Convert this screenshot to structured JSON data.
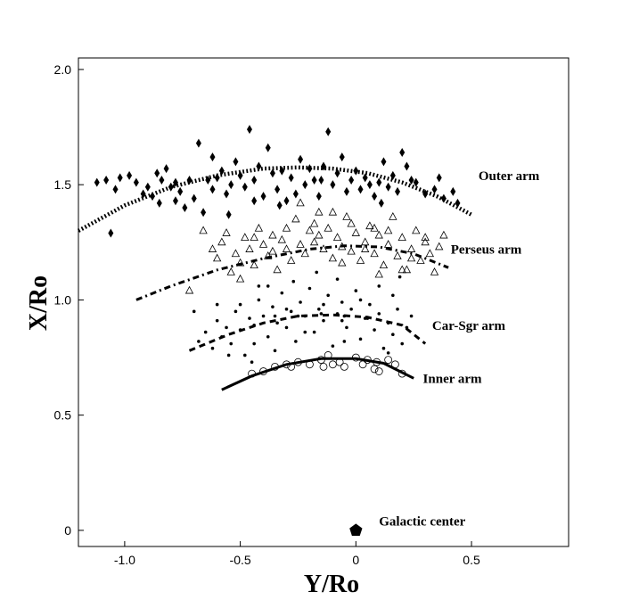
{
  "chart_data": {
    "type": "scatter",
    "xlabel": "Y/Ro",
    "ylabel": "X/Ro",
    "xlim": [
      -1.2,
      0.92
    ],
    "ylim": [
      -0.07,
      2.05
    ],
    "x_ticks": [
      {
        "v": -1.0,
        "label": "-1.0"
      },
      {
        "v": -0.5,
        "label": "-0.5"
      },
      {
        "v": 0,
        "label": "0"
      },
      {
        "v": 0.5,
        "label": "0.5"
      }
    ],
    "y_ticks": [
      {
        "v": 0,
        "label": "0"
      },
      {
        "v": 0.5,
        "label": "0.5"
      },
      {
        "v": 1.0,
        "label": "1.0"
      },
      {
        "v": 1.5,
        "label": "1.5"
      },
      {
        "v": 2.0,
        "label": "2.0"
      }
    ],
    "grid": false,
    "arms": [
      {
        "name": "Outer arm",
        "label_at": [
          0.53,
          1.52
        ],
        "line_style": "dotted",
        "curve": [
          [
            -1.2,
            1.3
          ],
          [
            -1.0,
            1.41
          ],
          [
            -0.8,
            1.49
          ],
          [
            -0.6,
            1.54
          ],
          [
            -0.4,
            1.57
          ],
          [
            -0.25,
            1.575
          ],
          [
            -0.1,
            1.57
          ],
          [
            0.05,
            1.55
          ],
          [
            0.2,
            1.51
          ],
          [
            0.35,
            1.45
          ],
          [
            0.5,
            1.37
          ]
        ],
        "marker": "diamond",
        "points": [
          [
            -1.12,
            1.51
          ],
          [
            -1.08,
            1.52
          ],
          [
            -1.04,
            1.48
          ],
          [
            -1.02,
            1.53
          ],
          [
            -0.98,
            1.54
          ],
          [
            -0.95,
            1.51
          ],
          [
            -0.92,
            1.46
          ],
          [
            -0.9,
            1.49
          ],
          [
            -0.88,
            1.45
          ],
          [
            -0.86,
            1.55
          ],
          [
            -0.84,
            1.52
          ],
          [
            -0.82,
            1.57
          ],
          [
            -0.8,
            1.49
          ],
          [
            -0.78,
            1.43
          ],
          [
            -0.76,
            1.47
          ],
          [
            -0.74,
            1.4
          ],
          [
            -0.72,
            1.52
          ],
          [
            -0.7,
            1.44
          ],
          [
            -0.68,
            1.68
          ],
          [
            -0.66,
            1.38
          ],
          [
            -0.64,
            1.52
          ],
          [
            -0.62,
            1.48
          ],
          [
            -0.6,
            1.53
          ],
          [
            -0.58,
            1.56
          ],
          [
            -0.56,
            1.46
          ],
          [
            -0.54,
            1.5
          ],
          [
            -0.52,
            1.6
          ],
          [
            -0.5,
            1.54
          ],
          [
            -0.48,
            1.49
          ],
          [
            -0.46,
            1.74
          ],
          [
            -0.44,
            1.52
          ],
          [
            -0.42,
            1.58
          ],
          [
            -0.4,
            1.45
          ],
          [
            -0.38,
            1.66
          ],
          [
            -0.36,
            1.55
          ],
          [
            -0.34,
            1.48
          ],
          [
            -0.32,
            1.56
          ],
          [
            -0.3,
            1.43
          ],
          [
            -0.28,
            1.53
          ],
          [
            -0.26,
            1.46
          ],
          [
            -0.24,
            1.61
          ],
          [
            -0.22,
            1.5
          ],
          [
            -0.2,
            1.57
          ],
          [
            -0.18,
            1.52
          ],
          [
            -0.16,
            1.45
          ],
          [
            -0.14,
            1.58
          ],
          [
            -0.12,
            1.73
          ],
          [
            -0.1,
            1.5
          ],
          [
            -0.08,
            1.55
          ],
          [
            -0.06,
            1.62
          ],
          [
            -0.04,
            1.47
          ],
          [
            -0.02,
            1.52
          ],
          [
            0.0,
            1.56
          ],
          [
            0.02,
            1.48
          ],
          [
            0.04,
            1.53
          ],
          [
            0.06,
            1.5
          ],
          [
            0.08,
            1.45
          ],
          [
            0.1,
            1.51
          ],
          [
            0.12,
            1.6
          ],
          [
            0.14,
            1.49
          ],
          [
            0.16,
            1.54
          ],
          [
            0.18,
            1.47
          ],
          [
            0.2,
            1.64
          ],
          [
            0.22,
            1.58
          ],
          [
            0.24,
            1.52
          ],
          [
            0.3,
            1.46
          ],
          [
            0.34,
            1.48
          ],
          [
            0.38,
            1.44
          ],
          [
            0.42,
            1.47
          ],
          [
            0.44,
            1.42
          ],
          [
            -1.06,
            1.29
          ],
          [
            -0.85,
            1.42
          ],
          [
            -0.78,
            1.51
          ],
          [
            -0.62,
            1.62
          ],
          [
            -0.33,
            1.41
          ],
          [
            -0.15,
            1.52
          ],
          [
            0.11,
            1.42
          ],
          [
            0.26,
            1.51
          ],
          [
            0.36,
            1.53
          ],
          [
            -0.55,
            1.37
          ],
          [
            -0.44,
            1.43
          ]
        ]
      },
      {
        "name": "Perseus arm",
        "label_at": [
          0.41,
          1.2
        ],
        "line_style": "dash-dot",
        "curve": [
          [
            -0.95,
            1.0
          ],
          [
            -0.8,
            1.06
          ],
          [
            -0.6,
            1.13
          ],
          [
            -0.4,
            1.18
          ],
          [
            -0.2,
            1.22
          ],
          [
            -0.05,
            1.235
          ],
          [
            0.1,
            1.23
          ],
          [
            0.25,
            1.2
          ],
          [
            0.4,
            1.14
          ]
        ],
        "marker": "triangle",
        "points": [
          [
            -0.72,
            1.04
          ],
          [
            -0.66,
            1.3
          ],
          [
            -0.62,
            1.22
          ],
          [
            -0.6,
            1.18
          ],
          [
            -0.58,
            1.25
          ],
          [
            -0.56,
            1.29
          ],
          [
            -0.54,
            1.12
          ],
          [
            -0.52,
            1.2
          ],
          [
            -0.5,
            1.16
          ],
          [
            -0.48,
            1.27
          ],
          [
            -0.46,
            1.22
          ],
          [
            -0.44,
            1.15
          ],
          [
            -0.42,
            1.31
          ],
          [
            -0.4,
            1.24
          ],
          [
            -0.38,
            1.19
          ],
          [
            -0.36,
            1.28
          ],
          [
            -0.34,
            1.13
          ],
          [
            -0.32,
            1.26
          ],
          [
            -0.3,
            1.22
          ],
          [
            -0.28,
            1.17
          ],
          [
            -0.26,
            1.35
          ],
          [
            -0.24,
            1.24
          ],
          [
            -0.22,
            1.2
          ],
          [
            -0.2,
            1.3
          ],
          [
            -0.18,
            1.25
          ],
          [
            -0.16,
            1.38
          ],
          [
            -0.14,
            1.22
          ],
          [
            -0.12,
            1.31
          ],
          [
            -0.1,
            1.18
          ],
          [
            -0.08,
            1.27
          ],
          [
            -0.06,
            1.23
          ],
          [
            -0.04,
            1.36
          ],
          [
            -0.02,
            1.21
          ],
          [
            0.0,
            1.29
          ],
          [
            0.02,
            1.17
          ],
          [
            0.04,
            1.25
          ],
          [
            0.06,
            1.32
          ],
          [
            0.08,
            1.2
          ],
          [
            0.1,
            1.28
          ],
          [
            0.12,
            1.15
          ],
          [
            0.14,
            1.24
          ],
          [
            0.16,
            1.36
          ],
          [
            0.18,
            1.19
          ],
          [
            0.2,
            1.27
          ],
          [
            0.22,
            1.13
          ],
          [
            0.24,
            1.22
          ],
          [
            0.26,
            1.3
          ],
          [
            0.28,
            1.17
          ],
          [
            0.3,
            1.25
          ],
          [
            0.32,
            1.2
          ],
          [
            0.34,
            1.12
          ],
          [
            0.36,
            1.23
          ],
          [
            0.38,
            1.28
          ],
          [
            -0.5,
            1.09
          ],
          [
            -0.44,
            1.27
          ],
          [
            -0.36,
            1.21
          ],
          [
            -0.24,
            1.42
          ],
          [
            -0.18,
            1.33
          ],
          [
            -0.1,
            1.38
          ],
          [
            -0.02,
            1.33
          ],
          [
            0.08,
            1.31
          ],
          [
            0.14,
            1.3
          ],
          [
            0.2,
            1.13
          ],
          [
            0.24,
            1.18
          ],
          [
            0.3,
            1.27
          ],
          [
            -0.3,
            1.31
          ],
          [
            -0.16,
            1.28
          ],
          [
            -0.06,
            1.16
          ],
          [
            0.04,
            1.22
          ],
          [
            0.1,
            1.11
          ]
        ]
      },
      {
        "name": "Car-Sgr arm",
        "label_at": [
          0.33,
          0.87
        ],
        "line_style": "dashed",
        "curve": [
          [
            -0.72,
            0.78
          ],
          [
            -0.55,
            0.85
          ],
          [
            -0.4,
            0.9
          ],
          [
            -0.25,
            0.93
          ],
          [
            -0.1,
            0.935
          ],
          [
            0.05,
            0.925
          ],
          [
            0.2,
            0.89
          ],
          [
            0.3,
            0.81
          ]
        ],
        "marker": "dot",
        "points": [
          [
            -0.68,
            0.82
          ],
          [
            -0.65,
            0.86
          ],
          [
            -0.62,
            0.79
          ],
          [
            -0.6,
            0.91
          ],
          [
            -0.58,
            0.84
          ],
          [
            -0.56,
            0.88
          ],
          [
            -0.54,
            0.81
          ],
          [
            -0.52,
            0.95
          ],
          [
            -0.5,
            0.87
          ],
          [
            -0.48,
            0.76
          ],
          [
            -0.46,
            0.92
          ],
          [
            -0.44,
            0.89
          ],
          [
            -0.42,
            1.0
          ],
          [
            -0.4,
            0.93
          ],
          [
            -0.38,
            0.84
          ],
          [
            -0.36,
            0.97
          ],
          [
            -0.34,
            0.9
          ],
          [
            -0.32,
            1.03
          ],
          [
            -0.3,
            0.88
          ],
          [
            -0.28,
            0.95
          ],
          [
            -0.26,
            0.82
          ],
          [
            -0.24,
            0.99
          ],
          [
            -0.22,
            0.93
          ],
          [
            -0.2,
            1.05
          ],
          [
            -0.18,
            0.86
          ],
          [
            -0.16,
            0.96
          ],
          [
            -0.14,
            0.91
          ],
          [
            -0.12,
            1.02
          ],
          [
            -0.1,
            0.8
          ],
          [
            -0.08,
            0.94
          ],
          [
            -0.06,
            0.99
          ],
          [
            -0.04,
            0.88
          ],
          [
            -0.02,
            0.96
          ],
          [
            0.0,
            1.04
          ],
          [
            0.02,
            0.83
          ],
          [
            0.04,
            0.92
          ],
          [
            0.06,
            0.98
          ],
          [
            0.08,
            0.87
          ],
          [
            0.1,
            0.94
          ],
          [
            0.12,
            0.79
          ],
          [
            0.14,
            0.9
          ],
          [
            0.16,
            0.85
          ],
          [
            0.18,
            0.96
          ],
          [
            0.2,
            0.81
          ],
          [
            0.22,
            0.88
          ],
          [
            0.24,
            0.93
          ],
          [
            -0.5,
            0.98
          ],
          [
            -0.44,
            0.81
          ],
          [
            -0.38,
            1.06
          ],
          [
            -0.3,
            0.96
          ],
          [
            -0.22,
            0.86
          ],
          [
            -0.14,
            0.98
          ],
          [
            -0.06,
            0.91
          ],
          [
            0.02,
            1.0
          ],
          [
            0.1,
            1.06
          ],
          [
            0.16,
            1.02
          ],
          [
            -0.35,
            0.93
          ],
          [
            -0.25,
            0.93
          ],
          [
            -0.15,
            0.94
          ],
          [
            -0.05,
            0.93
          ],
          [
            0.05,
            0.92
          ],
          [
            -0.6,
            0.98
          ],
          [
            -0.7,
            0.95
          ],
          [
            -0.55,
            0.76
          ],
          [
            -0.45,
            0.73
          ],
          [
            -0.35,
            0.78
          ],
          [
            -0.05,
            0.82
          ],
          [
            0.14,
            0.77
          ],
          [
            0.19,
            1.1
          ],
          [
            -0.27,
            1.08
          ],
          [
            -0.17,
            1.12
          ],
          [
            -0.08,
            1.09
          ],
          [
            -0.42,
            1.06
          ]
        ]
      },
      {
        "name": "Inner arm",
        "label_at": [
          0.29,
          0.64
        ],
        "line_style": "solid",
        "curve": [
          [
            -0.58,
            0.61
          ],
          [
            -0.45,
            0.67
          ],
          [
            -0.3,
            0.72
          ],
          [
            -0.15,
            0.745
          ],
          [
            0.0,
            0.745
          ],
          [
            0.12,
            0.725
          ],
          [
            0.25,
            0.66
          ]
        ],
        "marker": "circle",
        "points": [
          [
            -0.45,
            0.68
          ],
          [
            -0.4,
            0.69
          ],
          [
            -0.35,
            0.71
          ],
          [
            -0.3,
            0.72
          ],
          [
            -0.25,
            0.73
          ],
          [
            -0.2,
            0.72
          ],
          [
            -0.15,
            0.74
          ],
          [
            -0.12,
            0.76
          ],
          [
            -0.1,
            0.72
          ],
          [
            -0.07,
            0.73
          ],
          [
            -0.05,
            0.71
          ],
          [
            0.0,
            0.75
          ],
          [
            0.03,
            0.72
          ],
          [
            0.05,
            0.74
          ],
          [
            0.08,
            0.7
          ],
          [
            0.1,
            0.69
          ],
          [
            0.14,
            0.74
          ],
          [
            0.17,
            0.72
          ],
          [
            0.2,
            0.68
          ],
          [
            -0.28,
            0.71
          ],
          [
            -0.14,
            0.71
          ],
          [
            0.09,
            0.73
          ]
        ]
      }
    ],
    "galactic_center": {
      "name": "Galactic center",
      "x": 0.0,
      "y": 0.0,
      "marker": "pentagon",
      "label_at": [
        0.1,
        0.02
      ]
    }
  }
}
